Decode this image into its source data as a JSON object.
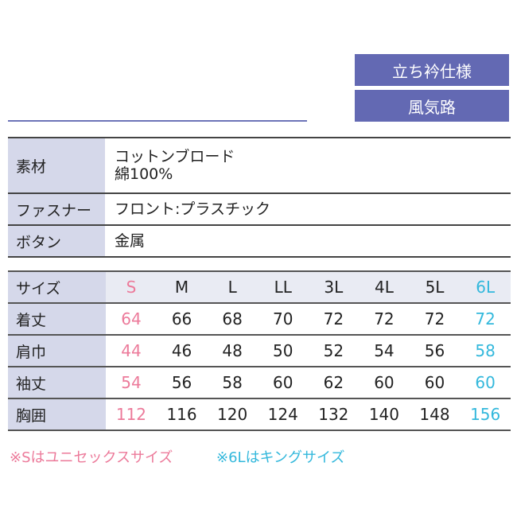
{
  "tags": [
    "立ち衿仕様",
    "風気路"
  ],
  "colors": {
    "tag": "#6369b3",
    "label_bg": "#d5d8ea",
    "unisex": "#ec7a9a",
    "king": "#33b8dc"
  },
  "spec": [
    {
      "label": "素材",
      "lines": [
        "コットンブロード",
        "綿100%"
      ]
    },
    {
      "label": "ファスナー",
      "lines": [
        "フロント:プラスチック"
      ]
    },
    {
      "label": "ボタン",
      "lines": [
        "金属"
      ]
    }
  ],
  "size_table": {
    "header_label": "サイズ",
    "sizes": [
      "S",
      "M",
      "L",
      "LL",
      "3L",
      "4L",
      "5L",
      "6L"
    ],
    "rows": [
      {
        "label": "着丈",
        "values": [
          "64",
          "66",
          "68",
          "70",
          "72",
          "72",
          "72",
          "72"
        ]
      },
      {
        "label": "肩巾",
        "values": [
          "44",
          "46",
          "48",
          "50",
          "52",
          "54",
          "56",
          "58"
        ]
      },
      {
        "label": "袖丈",
        "values": [
          "54",
          "56",
          "58",
          "60",
          "62",
          "60",
          "60",
          "60"
        ]
      },
      {
        "label": "胸囲",
        "values": [
          "112",
          "116",
          "120",
          "124",
          "132",
          "140",
          "148",
          "156"
        ]
      }
    ]
  },
  "notes": {
    "unisex": "※Sはユニセックスサイズ",
    "king": "※6Lはキングサイズ"
  }
}
